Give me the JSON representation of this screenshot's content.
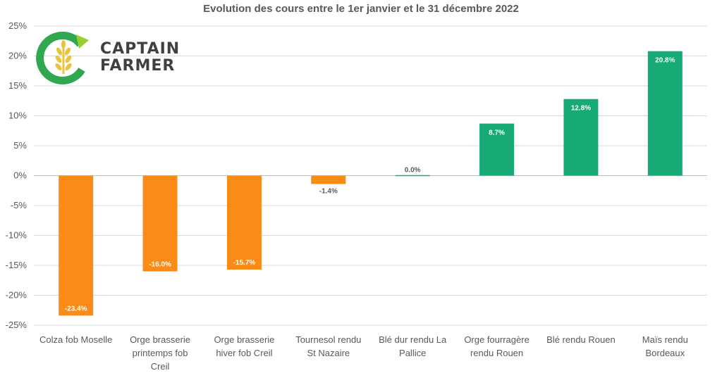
{
  "chart_data": {
    "type": "bar",
    "title": "Evolution des cours entre le 1er janvier et le 31 décembre 2022",
    "xlabel": "",
    "ylabel": "",
    "ylim": [
      -25,
      25
    ],
    "yticks": [
      25,
      20,
      15,
      10,
      5,
      0,
      -5,
      -10,
      -15,
      -20,
      -25
    ],
    "ytick_labels": [
      "25%",
      "20%",
      "15%",
      "10%",
      "5%",
      "0%",
      "-5%",
      "-10%",
      "-15%",
      "-20%",
      "-25%"
    ],
    "grid": true,
    "legend": "none",
    "categories": [
      [
        "Colza fob Moselle"
      ],
      [
        "Orge brasserie",
        "printemps fob",
        "Creil"
      ],
      [
        "Orge brasserie",
        "hiver fob Creil"
      ],
      [
        "Tournesol rendu",
        "St Nazaire"
      ],
      [
        "Blé dur rendu La",
        "Pallice"
      ],
      [
        "Orge fourragère",
        "rendu Rouen"
      ],
      [
        "Blé rendu Rouen"
      ],
      [
        "Maïs rendu",
        "Bordeaux"
      ]
    ],
    "values": [
      -23.4,
      -16.0,
      -15.7,
      -1.4,
      0.0,
      8.7,
      12.8,
      20.8
    ],
    "value_labels": [
      "-23.4%",
      "-16.0%",
      "-15.7%",
      "-1.4%",
      "0.0%",
      "8.7%",
      "12.8%",
      "20.8%"
    ],
    "colors": {
      "negative": "#f98b16",
      "positive": "#16aa75",
      "grid": "#d9d9d9",
      "text": "#595959"
    }
  },
  "logo": {
    "line1": "CAPTAIN",
    "line2": "FARMER",
    "icon": "wheat-c-icon",
    "colors": {
      "green": "#2fa84f",
      "lime": "#9acd32",
      "wheat": "#e9c33b",
      "text": "#3f4044"
    }
  }
}
